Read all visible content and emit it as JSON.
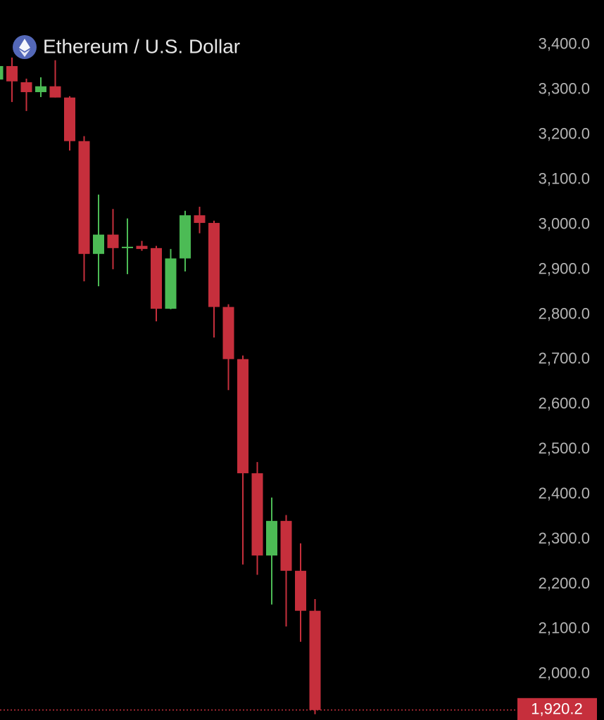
{
  "chart_data": {
    "type": "candlestick",
    "title": "Ethereum / U.S. Dollar",
    "categories": [
      null,
      null,
      null,
      null,
      null,
      null,
      null,
      null,
      null,
      null,
      null,
      null,
      null,
      null,
      null,
      null,
      null,
      null,
      null,
      null,
      null,
      null,
      null
    ],
    "open": [
      3323,
      3353,
      3317,
      3295,
      3308,
      3283,
      3186,
      2935,
      2978,
      2948,
      2953,
      2948,
      2813,
      2925,
      3021,
      3004,
      2817,
      2701,
      2447,
      2264,
      2341,
      2230,
      2141
    ],
    "high": [
      3362,
      3372,
      3325,
      3328,
      3366,
      3286,
      3197,
      3067,
      3035,
      3014,
      2964,
      2953,
      2946,
      3031,
      3040,
      3009,
      2823,
      2709,
      2472,
      2393,
      2354,
      2291,
      2167
    ],
    "low": [
      3323,
      3273,
      3253,
      3284,
      3283,
      3165,
      2874,
      2863,
      2901,
      2890,
      2942,
      2785,
      2812,
      2896,
      2981,
      2749,
      2632,
      2244,
      2221,
      2155,
      2106,
      2072,
      1911
    ],
    "close": [
      3353,
      3319,
      3295,
      3308,
      3283,
      3186,
      2935,
      2978,
      2948,
      2951,
      2946,
      2813,
      2925,
      3021,
      3004,
      2817,
      2701,
      2447,
      2264,
      2341,
      2230,
      2141,
      1920.2
    ],
    "up_color": "#4cbb55",
    "down_color": "#c62f3c",
    "ylim": [
      1898,
      3500
    ],
    "yticks": [
      {
        "value": 3400,
        "label": "3,400.0"
      },
      {
        "value": 3300,
        "label": "3,300.0"
      },
      {
        "value": 3200,
        "label": "3,200.0"
      },
      {
        "value": 3100,
        "label": "3,100.0"
      },
      {
        "value": 3000,
        "label": "3,000.0"
      },
      {
        "value": 2900,
        "label": "2,900.0"
      },
      {
        "value": 2800,
        "label": "2,800.0"
      },
      {
        "value": 2700,
        "label": "2,700.0"
      },
      {
        "value": 2600,
        "label": "2,600.0"
      },
      {
        "value": 2500,
        "label": "2,500.0"
      },
      {
        "value": 2400,
        "label": "2,400.0"
      },
      {
        "value": 2300,
        "label": "2,300.0"
      },
      {
        "value": 2200,
        "label": "2,200.0"
      },
      {
        "value": 2100,
        "label": "2,100.0"
      },
      {
        "value": 2000,
        "label": "2,000.0"
      }
    ],
    "last_price": {
      "value": 1920.2,
      "label": "1,920.2"
    }
  }
}
